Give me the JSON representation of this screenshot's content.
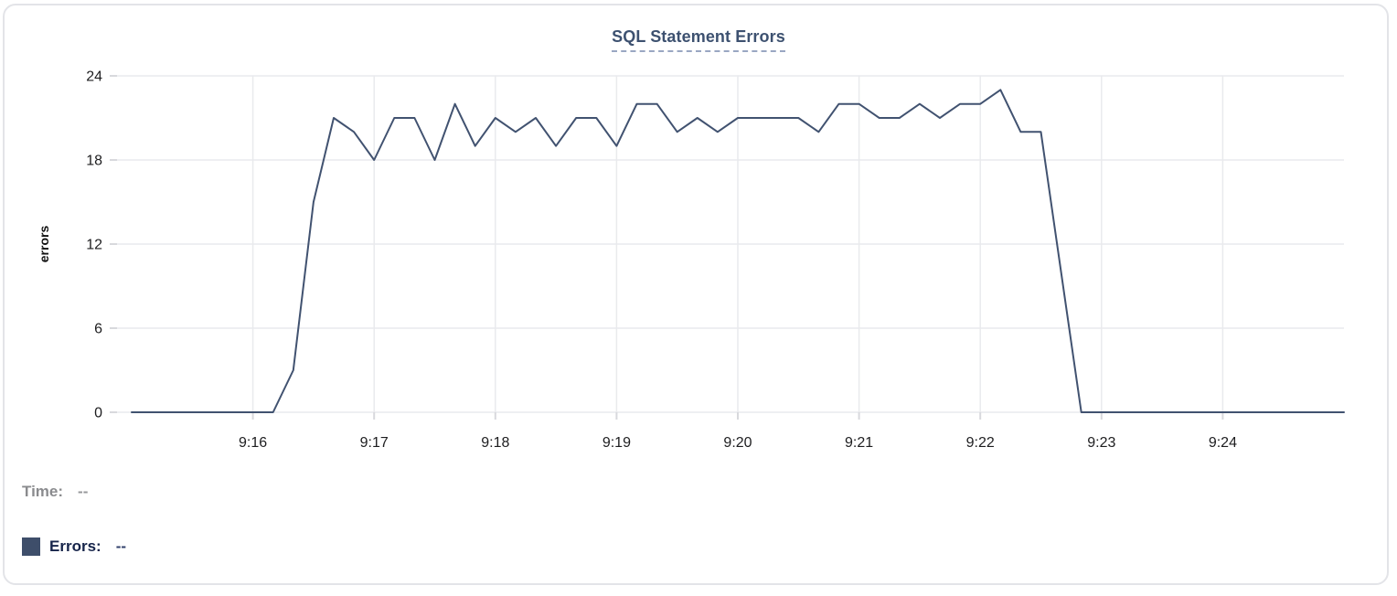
{
  "card": {
    "title": "SQL Statement Errors"
  },
  "chart_data": {
    "type": "line",
    "title": "SQL Statement Errors",
    "xlabel": "",
    "ylabel": "errors",
    "ylim": [
      0,
      24
    ],
    "yticks": [
      0,
      6,
      12,
      18,
      24
    ],
    "xtick_labels": [
      "9:16",
      "9:17",
      "9:18",
      "9:19",
      "9:20",
      "9:21",
      "9:22",
      "9:23",
      "9:24"
    ],
    "x_range": [
      "9:15:00",
      "9:25:00"
    ],
    "x_interval_seconds": 10,
    "grid": true,
    "legend_position": "none",
    "line_color": "#415270",
    "series": [
      {
        "name": "Errors",
        "x": [
          "9:15:00",
          "9:15:10",
          "9:15:20",
          "9:15:30",
          "9:15:40",
          "9:15:50",
          "9:16:00",
          "9:16:10",
          "9:16:20",
          "9:16:30",
          "9:16:40",
          "9:16:50",
          "9:17:00",
          "9:17:10",
          "9:17:20",
          "9:17:30",
          "9:17:40",
          "9:17:50",
          "9:18:00",
          "9:18:10",
          "9:18:20",
          "9:18:30",
          "9:18:40",
          "9:18:50",
          "9:19:00",
          "9:19:10",
          "9:19:20",
          "9:19:30",
          "9:19:40",
          "9:19:50",
          "9:20:00",
          "9:20:10",
          "9:20:20",
          "9:20:30",
          "9:20:40",
          "9:20:50",
          "9:21:00",
          "9:21:10",
          "9:21:20",
          "9:21:30",
          "9:21:40",
          "9:21:50",
          "9:22:00",
          "9:22:10",
          "9:22:20",
          "9:22:30",
          "9:22:40",
          "9:22:50",
          "9:23:00",
          "9:23:10",
          "9:23:20",
          "9:23:30",
          "9:23:40",
          "9:23:50",
          "9:24:00",
          "9:24:10",
          "9:24:20",
          "9:24:30",
          "9:24:40",
          "9:24:50",
          "9:25:00"
        ],
        "values": [
          0,
          0,
          0,
          0,
          0,
          0,
          0,
          0,
          3,
          15,
          21,
          20,
          18,
          21,
          21,
          18,
          22,
          19,
          21,
          20,
          21,
          19,
          21,
          21,
          19,
          22,
          22,
          20,
          21,
          20,
          21,
          21,
          21,
          21,
          20,
          22,
          22,
          21,
          21,
          22,
          21,
          22,
          22,
          23,
          20,
          20,
          10,
          0,
          0,
          0,
          0,
          0,
          0,
          0,
          0,
          0,
          0,
          0,
          0,
          0,
          0
        ]
      }
    ]
  },
  "tooltip": {
    "time_label": "Time:",
    "time_value": "--",
    "errors_label": "Errors:",
    "errors_value": "--"
  },
  "colors": {
    "title": "#3D5170",
    "title_underline": "#9AA7C2",
    "grid": "#E9EAED",
    "tick": "#D8D9DD",
    "tick_text": "#1D1D1F",
    "axis_title": "#111111",
    "tooltip_label_muted": "#8A8B8E",
    "tooltip_value_muted": "#97989B",
    "tooltip_label_dark": "#16244A",
    "tooltip_value_dark": "#31406B",
    "swatch": "#3E4E6A",
    "card_border": "#E3E4E8"
  }
}
